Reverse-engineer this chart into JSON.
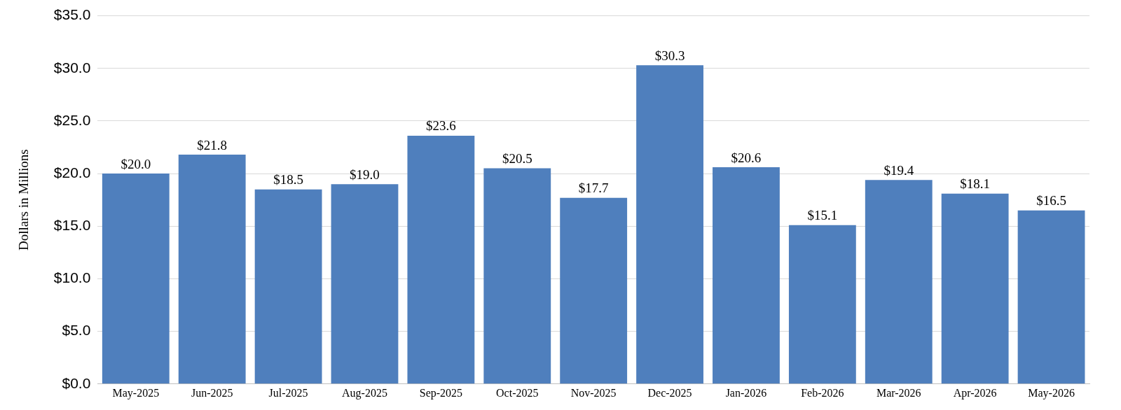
{
  "chart_data": {
    "type": "bar",
    "ylabel": "Dollars in Millions",
    "categories": [
      "May-2025",
      "Jun-2025",
      "Jul-2025",
      "Aug-2025",
      "Sep-2025",
      "Oct-2025",
      "Nov-2025",
      "Dec-2025",
      "Jan-2026",
      "Feb-2026",
      "Mar-2026",
      "Apr-2026",
      "May-2026"
    ],
    "values": [
      20.0,
      21.8,
      18.5,
      19.0,
      23.6,
      20.5,
      17.7,
      30.3,
      20.6,
      15.1,
      19.4,
      18.1,
      16.5
    ],
    "value_labels": [
      "$20.0",
      "$21.8",
      "$18.5",
      "$19.0",
      "$23.6",
      "$20.5",
      "$17.7",
      "$30.3",
      "$20.6",
      "$15.1",
      "$19.4",
      "$18.1",
      "$16.5"
    ],
    "color": "#4f7fbd",
    "ylim": [
      0,
      35
    ],
    "yticks": [
      {
        "value": 0,
        "label": "$0.0"
      },
      {
        "value": 5,
        "label": "$5.0"
      },
      {
        "value": 10,
        "label": "$10.0"
      },
      {
        "value": 15,
        "label": "$15.0"
      },
      {
        "value": 20,
        "label": "$20.0"
      },
      {
        "value": 25,
        "label": "$25.0"
      },
      {
        "value": 30,
        "label": "$30.0"
      },
      {
        "value": 35,
        "label": "$35.0"
      }
    ],
    "grid": "y",
    "legend": false
  }
}
